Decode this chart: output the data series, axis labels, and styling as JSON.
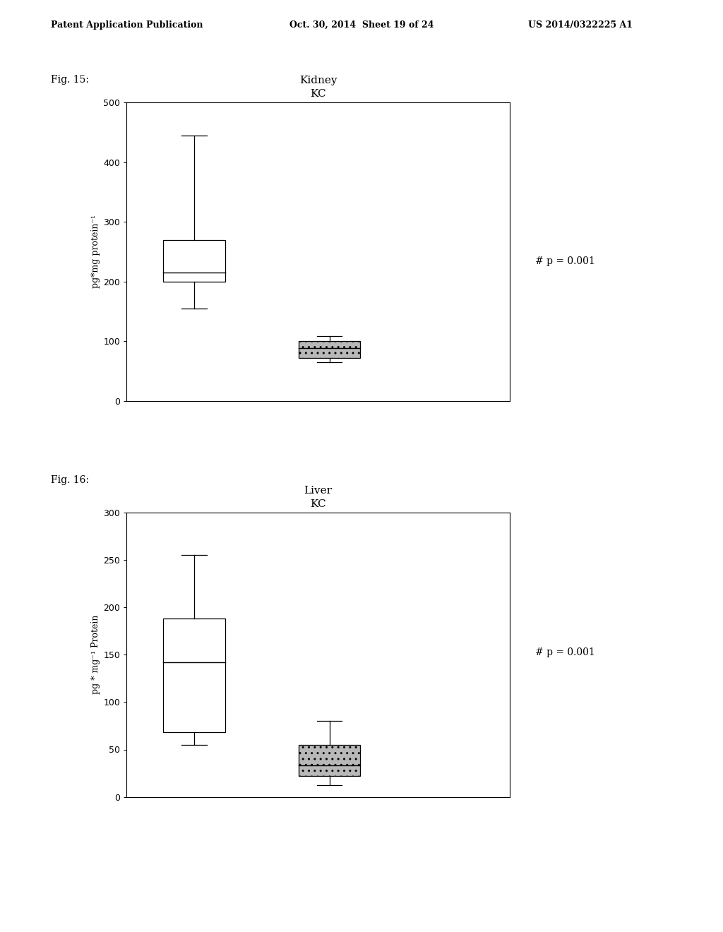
{
  "fig15": {
    "title_line1": "Kidney",
    "title_line2": "KC",
    "ylabel": "pg*mg protein⁻¹",
    "ylim": [
      0,
      500
    ],
    "yticks": [
      0,
      100,
      200,
      300,
      400,
      500
    ],
    "box1": {
      "whisker_low": 155,
      "q1": 200,
      "median": 215,
      "q3": 270,
      "whisker_high": 445,
      "facecolor": "white",
      "x": 1.0
    },
    "box2": {
      "whisker_low": 65,
      "q1": 72,
      "median": 88,
      "q3": 100,
      "whisker_high": 108,
      "facecolor": "#b8b8b8",
      "x": 2.2
    },
    "annotation": "# p = 0.001",
    "box_width": 0.55,
    "xlim": [
      0.4,
      3.8
    ]
  },
  "fig16": {
    "title_line1": "Liver",
    "title_line2": "KC",
    "ylabel": "pg * mg⁻¹ Protein",
    "ylim": [
      0,
      300
    ],
    "yticks": [
      0,
      50,
      100,
      150,
      200,
      250,
      300
    ],
    "box1": {
      "whisker_low": 55,
      "q1": 68,
      "median": 142,
      "q3": 188,
      "whisker_high": 255,
      "facecolor": "white",
      "x": 1.0
    },
    "box2": {
      "whisker_low": 12,
      "q1": 22,
      "median": 33,
      "q3": 55,
      "whisker_high": 80,
      "facecolor": "#b8b8b8",
      "x": 2.2
    },
    "annotation": "# p = 0.001",
    "box_width": 0.55,
    "xlim": [
      0.4,
      3.8
    ]
  },
  "header_left": "Patent Application Publication",
  "header_mid": "Oct. 30, 2014  Sheet 19 of 24",
  "header_right": "US 2014/0322225 A1",
  "fig15_label": "Fig. 15:",
  "fig16_label": "Fig. 16:",
  "background_color": "#ffffff",
  "text_color": "#000000",
  "header_fontsize": 9,
  "label_fontsize": 10,
  "title_fontsize": 11,
  "ylabel_fontsize": 9,
  "annot_fontsize": 10,
  "tick_fontsize": 9
}
